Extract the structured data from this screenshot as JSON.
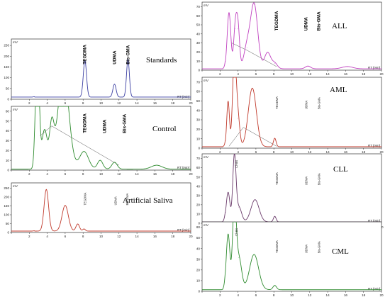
{
  "chart_data": [
    {
      "type": "line",
      "title": "Standards",
      "color": "#3b3fa3",
      "ylabel": "mV",
      "xlabel": "RT [min]",
      "x_ticks": [
        0,
        2,
        4,
        6,
        8,
        10,
        12,
        14,
        16,
        18,
        20
      ],
      "y_ticks": [
        0,
        50,
        100,
        150,
        200,
        250
      ],
      "xlim": [
        0,
        20
      ],
      "ylim": [
        0,
        280
      ],
      "baseline": 10,
      "label_style": "big",
      "peaks": [
        {
          "rt": 8.2,
          "height": 170,
          "width": 0.18
        },
        {
          "rt": 11.5,
          "height": 60,
          "width": 0.18
        },
        {
          "rt": 13.0,
          "height": 175,
          "width": 0.16
        }
      ],
      "peak_labels": [
        {
          "text": "TEGDMA",
          "rt": 8.2
        },
        {
          "text": "UDMA",
          "rt": 11.5
        },
        {
          "text": "Bis-GMA",
          "rt": 13.0
        }
      ],
      "baseline_line": []
    },
    {
      "type": "line",
      "title": "Control",
      "color": "#2e8b2e",
      "ylabel": "mV",
      "xlabel": "RT [min]",
      "x_ticks": [
        0,
        2,
        4,
        6,
        8,
        10,
        12,
        14,
        16,
        18,
        20
      ],
      "y_ticks": [
        0,
        10,
        20,
        30,
        40,
        50,
        60
      ],
      "xlim": [
        0,
        20
      ],
      "ylim": [
        0,
        65
      ],
      "baseline": 1,
      "label_style": "big",
      "peaks": [
        {
          "rt": 2.9,
          "height": 130,
          "width": 0.2
        },
        {
          "rt": 3.7,
          "height": 40,
          "width": 0.3
        },
        {
          "rt": 4.5,
          "height": 42,
          "width": 0.25
        },
        {
          "rt": 5.8,
          "height": 100,
          "width": 0.6
        },
        {
          "rt": 8.1,
          "height": 18,
          "width": 0.5
        },
        {
          "rt": 9.9,
          "height": 9,
          "width": 0.3
        },
        {
          "rt": 11.5,
          "height": 7,
          "width": 0.3
        },
        {
          "rt": 16.2,
          "height": 4,
          "width": 0.6
        }
      ],
      "peak_labels": [
        {
          "text": "TEGDMA",
          "rt": 8.2
        },
        {
          "text": "UDMA",
          "rt": 10.4
        },
        {
          "text": "Bis-GMA",
          "rt": 12.6
        }
      ],
      "baseline_line": [
        [
          3.2,
          35
        ],
        [
          4.5,
          45
        ],
        [
          12.0,
          5
        ]
      ]
    },
    {
      "type": "line",
      "title": "Artificial Saliva",
      "color": "#c0392b",
      "ylabel": "mV",
      "xlabel": "RT [min]",
      "x_ticks": [
        0,
        2,
        4,
        6,
        8,
        10,
        12,
        14,
        16,
        18,
        20
      ],
      "y_ticks": [
        0,
        50,
        100,
        150,
        200,
        250
      ],
      "xlim": [
        0,
        20
      ],
      "ylim": [
        0,
        280
      ],
      "baseline": 8,
      "label_style": "small",
      "peaks": [
        {
          "rt": 3.9,
          "height": 235,
          "width": 0.25
        },
        {
          "rt": 6.0,
          "height": 145,
          "width": 0.35
        },
        {
          "rt": 7.4,
          "height": 40,
          "width": 0.2
        },
        {
          "rt": 8.1,
          "height": 12,
          "width": 0.15
        }
      ],
      "peak_labels": [
        {
          "text": "TEGDMA",
          "rt": 8.2
        },
        {
          "text": "UDMA",
          "rt": 11.6
        },
        {
          "text": "Bis-GMA",
          "rt": 12.9
        }
      ],
      "baseline_line": []
    },
    {
      "type": "line",
      "title": "ALL",
      "color": "#c040c0",
      "ylabel": "mV",
      "xlabel": "RT [min]",
      "x_ticks": [
        0,
        2,
        4,
        6,
        8,
        10,
        12,
        14,
        16,
        18,
        20
      ],
      "y_ticks": [
        0,
        10,
        20,
        30,
        40,
        50,
        60,
        70
      ],
      "xlim": [
        0,
        20
      ],
      "ylim": [
        0,
        75
      ],
      "baseline": 1.5,
      "label_style": "big",
      "peaks": [
        {
          "rt": 3.0,
          "height": 62,
          "width": 0.2
        },
        {
          "rt": 3.7,
          "height": 44,
          "width": 0.18
        },
        {
          "rt": 4.0,
          "height": 44,
          "width": 0.18
        },
        {
          "rt": 5.0,
          "height": 23,
          "width": 0.35
        },
        {
          "rt": 5.8,
          "height": 71,
          "width": 0.4
        },
        {
          "rt": 7.3,
          "height": 18,
          "width": 0.35
        },
        {
          "rt": 8.1,
          "height": 6,
          "width": 0.3
        },
        {
          "rt": 11.8,
          "height": 3,
          "width": 0.3
        },
        {
          "rt": 16.2,
          "height": 2.5,
          "width": 0.6
        }
      ],
      "peak_labels": [
        {
          "text": "TEGDMA",
          "rt": 8.3
        },
        {
          "text": "UDMA",
          "rt": 11.6
        },
        {
          "text": "Bis-GMA",
          "rt": 13.0
        }
      ],
      "baseline_line": [
        [
          3.3,
          30
        ],
        [
          5.0,
          22
        ],
        [
          8.3,
          4
        ]
      ]
    },
    {
      "type": "line",
      "title": "AML",
      "color": "#c0392b",
      "ylabel": "mV",
      "xlabel": "RT [min]",
      "x_ticks": [
        0,
        2,
        4,
        6,
        8,
        10,
        12,
        14,
        16,
        18,
        20
      ],
      "y_ticks": [
        0,
        10,
        20,
        30,
        40,
        50,
        60,
        70
      ],
      "xlim": [
        0,
        20
      ],
      "ylim": [
        0,
        75
      ],
      "baseline": 1.5,
      "label_style": "small",
      "peaks": [
        {
          "rt": 2.9,
          "height": 48,
          "width": 0.15
        },
        {
          "rt": 3.6,
          "height": 95,
          "width": 0.2
        },
        {
          "rt": 4.0,
          "height": 30,
          "width": 0.2
        },
        {
          "rt": 5.6,
          "height": 62,
          "width": 0.45
        },
        {
          "rt": 8.1,
          "height": 9,
          "width": 0.15
        }
      ],
      "peak_labels": [
        {
          "text": "TEGDMA",
          "rt": 8.3
        },
        {
          "text": "UDMA",
          "rt": 11.6
        },
        {
          "text": "Bis-GMA",
          "rt": 13.0
        }
      ],
      "baseline_line": [
        [
          3.0,
          2
        ],
        [
          4.6,
          22
        ],
        [
          8.3,
          2
        ]
      ]
    },
    {
      "type": "line",
      "title": "CLL",
      "color": "#6a3a6a",
      "ylabel": "mV",
      "xlabel": "RT [min]",
      "x_ticks": [
        0,
        2,
        4,
        6,
        8,
        10,
        12,
        14,
        16,
        18,
        20
      ],
      "y_ticks": [
        0,
        10,
        20,
        30,
        40,
        50,
        60,
        70
      ],
      "xlim": [
        0,
        20
      ],
      "ylim": [
        0,
        75
      ],
      "baseline": 1.5,
      "label_style": "small",
      "peaks": [
        {
          "rt": 2.9,
          "height": 32,
          "width": 0.2
        },
        {
          "rt": 3.6,
          "height": 70,
          "width": 0.18
        },
        {
          "rt": 4.1,
          "height": 16,
          "width": 0.3
        },
        {
          "rt": 5.9,
          "height": 24,
          "width": 0.45
        },
        {
          "rt": 8.1,
          "height": 6,
          "width": 0.15
        }
      ],
      "peak_labels": [
        {
          "text": "TEGDMA",
          "rt": 8.3
        },
        {
          "text": "UDMA",
          "rt": 11.6
        },
        {
          "text": "Bis-GMA",
          "rt": 13.0
        },
        {
          "text": "Cl-Bis",
          "rt": 3.8
        }
      ],
      "baseline_line": []
    },
    {
      "type": "line",
      "title": "CML",
      "color": "#2e8b2e",
      "ylabel": "mV",
      "xlabel": "RT [min]",
      "x_ticks": [
        0,
        2,
        4,
        6,
        8,
        10,
        12,
        14,
        16,
        18,
        20
      ],
      "y_ticks": [
        0,
        10,
        20,
        30,
        40,
        50,
        60
      ],
      "xlim": [
        0,
        20
      ],
      "ylim": [
        0,
        65
      ],
      "baseline": 1.5,
      "label_style": "small",
      "peaks": [
        {
          "rt": 2.9,
          "height": 52,
          "width": 0.2
        },
        {
          "rt": 3.6,
          "height": 80,
          "width": 0.2
        },
        {
          "rt": 4.1,
          "height": 30,
          "width": 0.3
        },
        {
          "rt": 5.8,
          "height": 33,
          "width": 0.5
        },
        {
          "rt": 8.1,
          "height": 4,
          "width": 0.2
        }
      ],
      "peak_labels": [
        {
          "text": "TEGDMA",
          "rt": 8.3
        },
        {
          "text": "UDMA",
          "rt": 11.6
        },
        {
          "text": "Bis-GMA",
          "rt": 13.0
        },
        {
          "text": "Cl-Bis",
          "rt": 3.8
        }
      ],
      "baseline_line": []
    }
  ]
}
